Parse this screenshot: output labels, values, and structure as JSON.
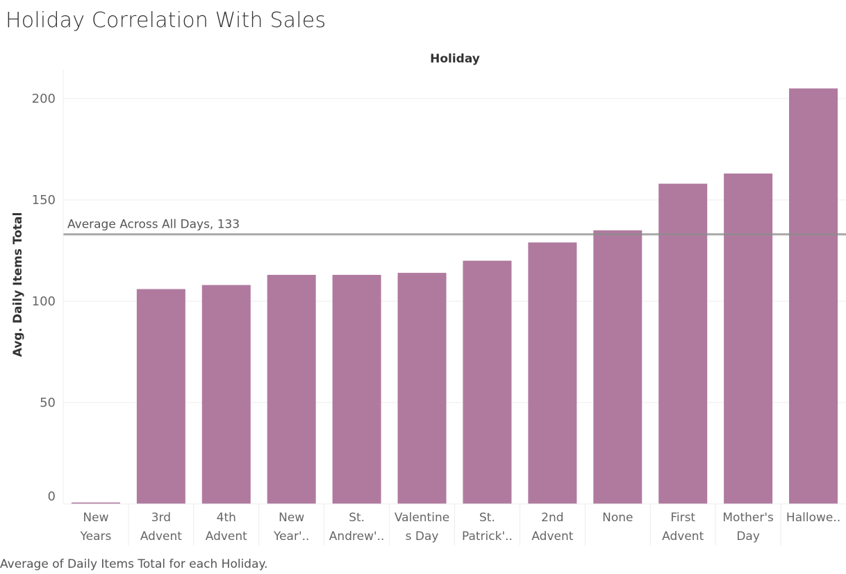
{
  "title": "Holiday Correlation With Sales",
  "footer": "Average of Daily Items Total for each Holiday.",
  "colors": {
    "bar": "#b07a9f",
    "reference_line": "#a6a6a6",
    "grid": "#ececec"
  },
  "chart_data": {
    "type": "bar",
    "title": "Holiday Correlation With Sales",
    "xlabel": "Holiday",
    "ylabel": "Avg. Daily Items Total",
    "ylim": [
      0,
      205
    ],
    "yticks": [
      0,
      50,
      100,
      150,
      200
    ],
    "grid": true,
    "categories": [
      [
        "New",
        "Years"
      ],
      [
        "3rd",
        "Advent"
      ],
      [
        "4th",
        "Advent"
      ],
      [
        "New",
        "Year'.."
      ],
      [
        "St.",
        "Andrew'.."
      ],
      [
        "Valentine",
        "s Day"
      ],
      [
        "St.",
        "Patrick'.."
      ],
      [
        "2nd",
        "Advent"
      ],
      [
        "None"
      ],
      [
        "First",
        "Advent"
      ],
      [
        "Mother's",
        "Day"
      ],
      [
        "Hallowe.."
      ]
    ],
    "values": [
      0.7,
      106,
      108,
      113,
      113,
      114,
      120,
      129,
      135,
      158,
      163,
      205
    ],
    "reference_line": {
      "label": "Average Across All Days, 133",
      "value": 133
    }
  }
}
